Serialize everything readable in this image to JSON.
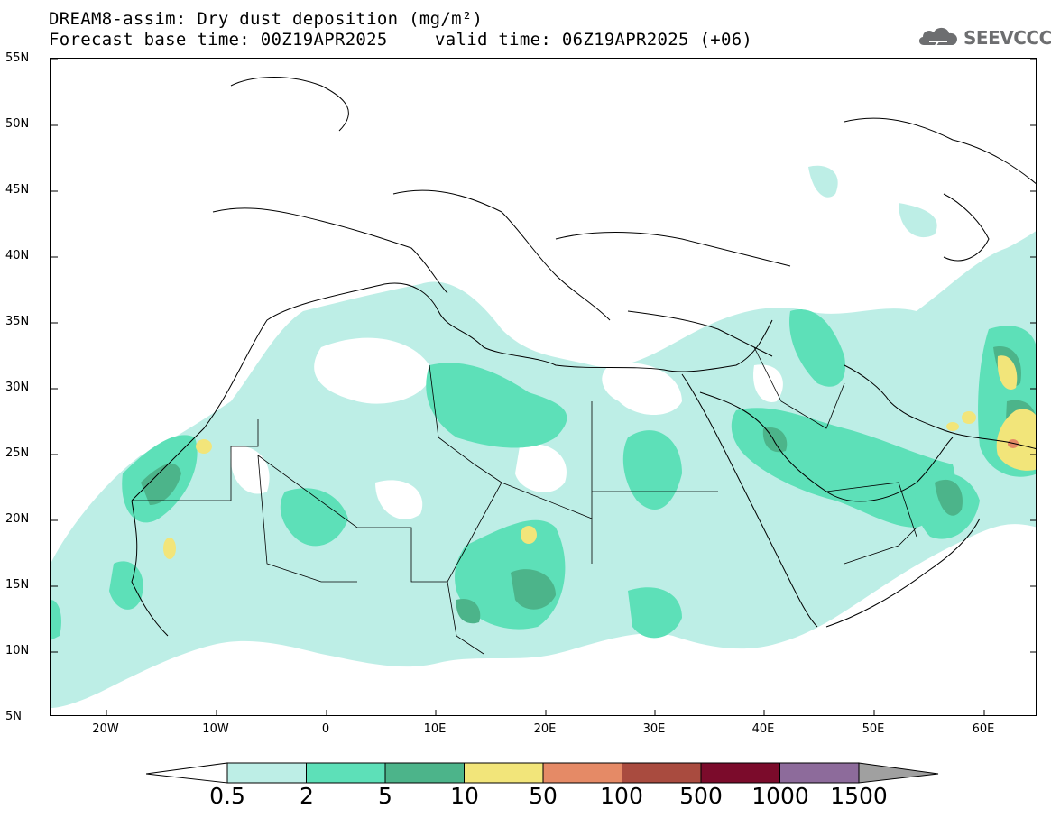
{
  "title": {
    "line1": "DREAM8-assim: Dry dust deposition (mg/m²)",
    "line2": "Forecast base time: 00Z19APR2025",
    "valid": "valid time: 06Z19APR2025 (+06)"
  },
  "logo": {
    "text": "SEEVCCC",
    "icon": "cloud-icon"
  },
  "axes": {
    "lat_labels": [
      "55N",
      "50N",
      "45N",
      "40N",
      "35N",
      "30N",
      "25N",
      "20N",
      "15N",
      "10N",
      "5N"
    ],
    "lon_labels": [
      "20W",
      "10W",
      "0",
      "10E",
      "20E",
      "30E",
      "40E",
      "50E",
      "60E"
    ],
    "lat_range": [
      5,
      55
    ],
    "lon_range": [
      -25,
      65
    ],
    "grid": true
  },
  "colorbar": {
    "labels": [
      "0.5",
      "2",
      "5",
      "10",
      "50",
      "100",
      "500",
      "1000",
      "1500"
    ],
    "colors": [
      "#bdeee6",
      "#5de0b8",
      "#4cb48a",
      "#f2e57a",
      "#e58a66",
      "#a94b3f",
      "#7b0b2b",
      "#8d6b9b"
    ],
    "low_color": "#ffffff",
    "high_color": "#a0a0a0"
  },
  "map": {
    "region": "North Africa, Middle East and Europe",
    "level_colors": {
      "l1": "#bdeee6",
      "l2": "#5de0b8",
      "l3": "#4cb48a",
      "l4": "#f2e57a",
      "l5": "#e58a66"
    }
  }
}
